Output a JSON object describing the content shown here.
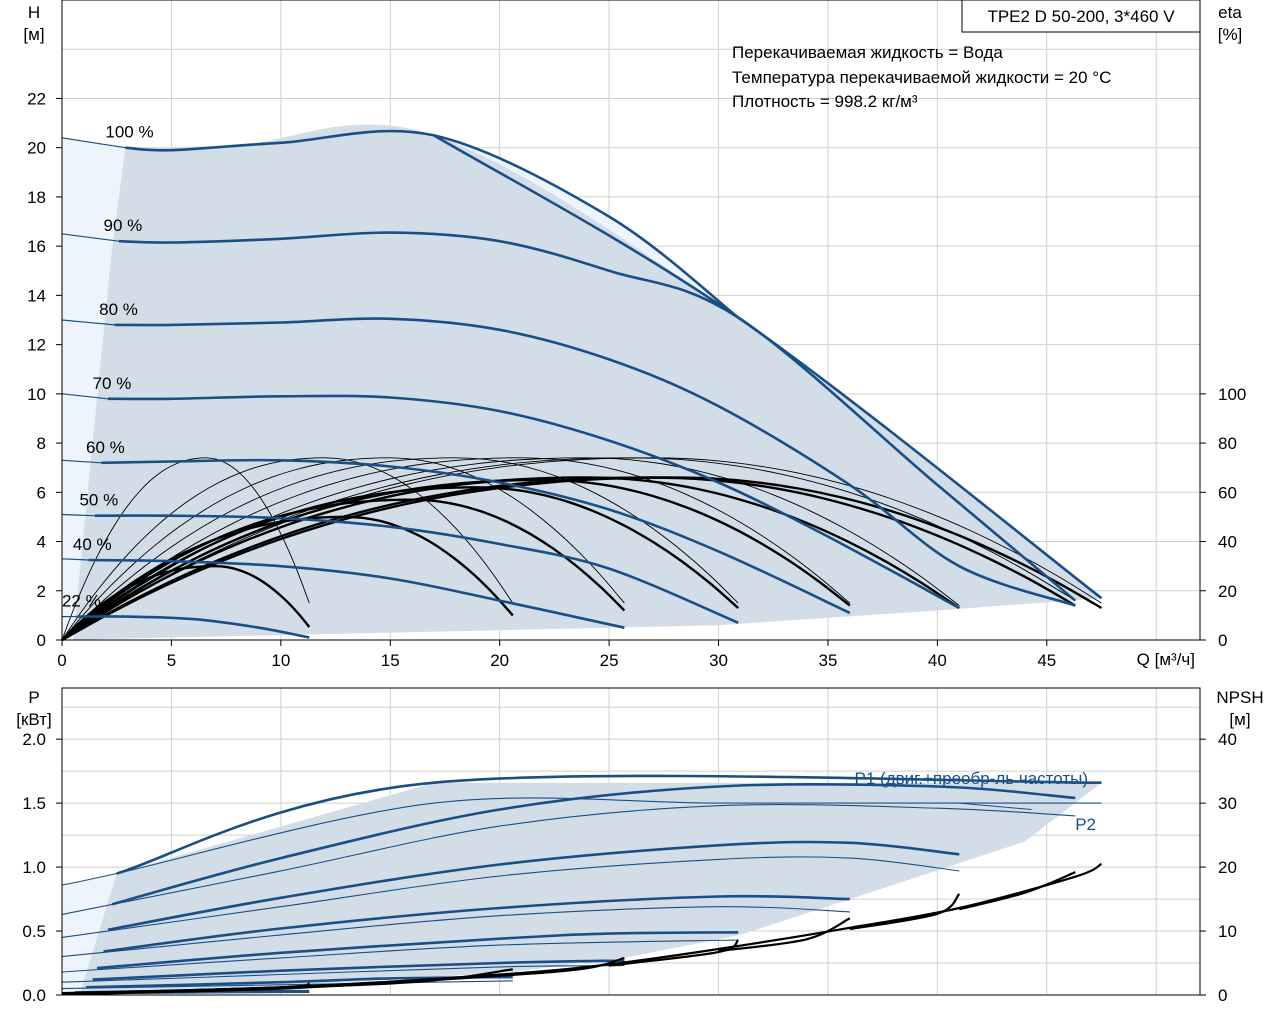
{
  "chart_data": [
    {
      "type": "line",
      "title": "TPE2 D 50-200, 3*460 V",
      "annotations": [
        "Перекачиваемая жидкость = Вода",
        "Температура перекачиваемой жидкости = 20 °C",
        "Плотность = 998.2 кг/м³"
      ],
      "xlabel": "Q [м³/ч]",
      "ylabel_left": [
        "H",
        "[м]"
      ],
      "ylabel_right": [
        "eta",
        "[%]"
      ],
      "xlim": [
        0,
        52
      ],
      "ylim_left": [
        0,
        26
      ],
      "ylim_right": [
        0,
        260
      ],
      "x_ticks": [
        0,
        5,
        10,
        15,
        20,
        25,
        30,
        35,
        40,
        45
      ],
      "y_left_ticks": [
        0,
        2,
        4,
        6,
        8,
        10,
        12,
        14,
        16,
        18,
        20,
        22
      ],
      "y_right_ticks": [
        0,
        20,
        40,
        60,
        80,
        100
      ],
      "grid": true,
      "envelope": {
        "top": [
          [
            2.9,
            20
          ],
          [
            8,
            20.1
          ],
          [
            17,
            20.5
          ],
          [
            30.9,
            13.1
          ],
          [
            47.5,
            1.7
          ]
        ],
        "bottom": [
          [
            0,
            0
          ],
          [
            10,
            0.2
          ],
          [
            20,
            0.4
          ],
          [
            30,
            0.6
          ],
          [
            40,
            1.2
          ],
          [
            47.5,
            1.7
          ]
        ]
      },
      "series": [
        {
          "name": "100 %",
          "points": [
            [
              0,
              20.4
            ],
            [
              2.9,
              20
            ],
            [
              5,
              19.9
            ],
            [
              10,
              20.2
            ],
            [
              17,
              20.5
            ],
            [
              25,
              17.2
            ],
            [
              30.9,
              13.1
            ]
          ]
        },
        {
          "name": "90 %",
          "points": [
            [
              0,
              16.5
            ],
            [
              2.6,
              16.2
            ],
            [
              5,
              16.15
            ],
            [
              10,
              16.3
            ],
            [
              15,
              16.55
            ],
            [
              20,
              16.2
            ],
            [
              25,
              15
            ],
            [
              30.9,
              13.1
            ],
            [
              40,
              6.3
            ],
            [
              46.3,
              1.6
            ]
          ]
        },
        {
          "name": "80 %",
          "points": [
            [
              0,
              13
            ],
            [
              2.4,
              12.8
            ],
            [
              5,
              12.8
            ],
            [
              10,
              12.9
            ],
            [
              15,
              13.05
            ],
            [
              20,
              12.6
            ],
            [
              25,
              11.4
            ],
            [
              30,
              9.5
            ],
            [
              36,
              6.3
            ],
            [
              41,
              3
            ],
            [
              46.3,
              1.4
            ]
          ]
        },
        {
          "name": "70 %",
          "points": [
            [
              0,
              10
            ],
            [
              2.1,
              9.8
            ],
            [
              5,
              9.8
            ],
            [
              10,
              9.9
            ],
            [
              15,
              9.85
            ],
            [
              20,
              9.3
            ],
            [
              25,
              8.1
            ],
            [
              30,
              6.4
            ],
            [
              35,
              4.2
            ],
            [
              41,
              1.3
            ]
          ]
        },
        {
          "name": "60 %",
          "points": [
            [
              0,
              7.3
            ],
            [
              1.8,
              7.2
            ],
            [
              5,
              7.25
            ],
            [
              10,
              7.3
            ],
            [
              15,
              7.05
            ],
            [
              20,
              6.4
            ],
            [
              25,
              5.3
            ],
            [
              30,
              3.6
            ],
            [
              36,
              1.1
            ]
          ]
        },
        {
          "name": "50 %",
          "points": [
            [
              0,
              5.1
            ],
            [
              1.5,
              5.05
            ],
            [
              5,
              5.05
            ],
            [
              10,
              4.95
            ],
            [
              15,
              4.6
            ],
            [
              20,
              3.9
            ],
            [
              25,
              2.9
            ],
            [
              30.9,
              0.7
            ]
          ]
        },
        {
          "name": "40 %",
          "points": [
            [
              0,
              3.3
            ],
            [
              1.2,
              3.25
            ],
            [
              5,
              3.2
            ],
            [
              10,
              3.0
            ],
            [
              15,
              2.5
            ],
            [
              20,
              1.6
            ],
            [
              25.7,
              0.5
            ]
          ]
        },
        {
          "name": "22 %",
          "points": [
            [
              0,
              0.95
            ],
            [
              0.7,
              0.95
            ],
            [
              3,
              0.95
            ],
            [
              6,
              0.85
            ],
            [
              9,
              0.5
            ],
            [
              11.3,
              0.1
            ]
          ]
        }
      ],
      "eta_bold_curves": [
        {
          "xmax": 11.3,
          "peak_q": 7,
          "peak_eta": 30,
          "end_eta": 5.3
        },
        {
          "xmax": 20.6,
          "peak_q": 13,
          "peak_eta": 50,
          "end_eta": 10
        },
        {
          "xmax": 25.7,
          "peak_q": 16,
          "peak_eta": 57,
          "end_eta": 12
        },
        {
          "xmax": 30.9,
          "peak_q": 19,
          "peak_eta": 62,
          "end_eta": 13
        },
        {
          "xmax": 36,
          "peak_q": 22,
          "peak_eta": 65,
          "end_eta": 14
        },
        {
          "xmax": 41,
          "peak_q": 24,
          "peak_eta": 66,
          "end_eta": 13
        },
        {
          "xmax": 46.3,
          "peak_q": 27,
          "peak_eta": 66,
          "end_eta": 14
        },
        {
          "xmax": 47.5,
          "peak_q": 28,
          "peak_eta": 66,
          "end_eta": 13
        }
      ],
      "eta_thin_curves": [
        {
          "xmax": 11.3,
          "peak_q": 6.6,
          "peak_eta": 74,
          "end_eta": 15
        },
        {
          "xmax": 20.6,
          "peak_q": 12,
          "peak_eta": 74,
          "end_eta": 15
        },
        {
          "xmax": 25.7,
          "peak_q": 15,
          "peak_eta": 74,
          "end_eta": 15
        },
        {
          "xmax": 30.9,
          "peak_q": 18,
          "peak_eta": 74,
          "end_eta": 15
        },
        {
          "xmax": 36,
          "peak_q": 21,
          "peak_eta": 74,
          "end_eta": 15
        },
        {
          "xmax": 41,
          "peak_q": 24,
          "peak_eta": 74,
          "end_eta": 14
        },
        {
          "xmax": 46.3,
          "peak_q": 26,
          "peak_eta": 74,
          "end_eta": 16
        },
        {
          "xmax": 47.5,
          "peak_q": 27,
          "peak_eta": 74,
          "end_eta": 15
        }
      ]
    },
    {
      "type": "line",
      "xlabel": "",
      "ylabel_left": [
        "P",
        "[кВт]"
      ],
      "ylabel_right": [
        "NPSH",
        "[м]"
      ],
      "xlim": [
        0,
        52
      ],
      "ylim_left": [
        0,
        2.4
      ],
      "ylim_right": [
        0,
        48
      ],
      "y_left_ticks": [
        "0.0",
        "0.5",
        "1.0",
        "1.5",
        "2.0"
      ],
      "y_right_ticks": [
        0,
        10,
        20,
        30,
        40
      ],
      "grid": true,
      "legend": [
        {
          "label": "P1 (двиг.+преобр-ль частоты)"
        },
        {
          "label": "P2"
        }
      ],
      "envelope": {
        "top": [
          [
            2.5,
            0.95
          ],
          [
            17,
            1.66
          ],
          [
            47.5,
            1.66
          ]
        ],
        "right": [
          [
            47.5,
            1.66
          ],
          [
            44,
            1.2
          ],
          [
            36,
            0.75
          ],
          [
            31,
            0.47
          ],
          [
            26,
            0.3
          ],
          [
            20.6,
            0.18
          ],
          [
            11.3,
            0.08
          ]
        ],
        "bottom": [
          [
            0,
            0
          ],
          [
            11.3,
            0.08
          ]
        ]
      },
      "p1_curves": [
        {
          "pts": [
            [
              2.5,
              0.95
            ],
            [
              17,
              1.66
            ],
            [
              47.5,
              1.66
            ]
          ]
        },
        {
          "pts": [
            [
              2.3,
              0.71
            ],
            [
              10,
              1.07
            ],
            [
              20,
              1.45
            ],
            [
              30,
              1.63
            ],
            [
              40,
              1.63
            ],
            [
              46.3,
              1.54
            ]
          ]
        },
        {
          "pts": [
            [
              2.1,
              0.51
            ],
            [
              10,
              0.76
            ],
            [
              20,
              1.02
            ],
            [
              30,
              1.17
            ],
            [
              36,
              1.19
            ],
            [
              41,
              1.1
            ]
          ]
        },
        {
          "pts": [
            [
              1.9,
              0.34
            ],
            [
              10,
              0.52
            ],
            [
              20,
              0.68
            ],
            [
              30,
              0.77
            ],
            [
              36,
              0.75
            ]
          ]
        },
        {
          "pts": [
            [
              1.6,
              0.21
            ],
            [
              10,
              0.33
            ],
            [
              20,
              0.44
            ],
            [
              25,
              0.48
            ],
            [
              30.9,
              0.49
            ]
          ]
        },
        {
          "pts": [
            [
              1.4,
              0.12
            ],
            [
              10,
              0.19
            ],
            [
              20,
              0.25
            ],
            [
              25.7,
              0.27
            ]
          ]
        },
        {
          "pts": [
            [
              1.1,
              0.06
            ],
            [
              10,
              0.1
            ],
            [
              15,
              0.13
            ],
            [
              20.6,
              0.14
            ]
          ]
        },
        {
          "pts": [
            [
              0.6,
              0.02
            ],
            [
              5,
              0.03
            ],
            [
              11.3,
              0.03
            ]
          ]
        }
      ],
      "p2_curves": [
        {
          "pts": [
            [
              0,
              0.86
            ],
            [
              2.5,
              0.95
            ],
            [
              17,
              1.5
            ],
            [
              30,
              1.5
            ],
            [
              41,
              1.5
            ],
            [
              47.5,
              1.5
            ]
          ]
        },
        {
          "pts": [
            [
              0,
              0.63
            ],
            [
              10,
              0.97
            ],
            [
              20,
              1.32
            ],
            [
              30,
              1.48
            ],
            [
              40,
              1.46
            ],
            [
              46.3,
              1.4
            ]
          ]
        },
        {
          "pts": [
            [
              0,
              0.45
            ],
            [
              10,
              0.69
            ],
            [
              20,
              0.93
            ],
            [
              30,
              1.06
            ],
            [
              36,
              1.07
            ],
            [
              41,
              0.97
            ]
          ]
        },
        {
          "pts": [
            [
              0,
              0.3
            ],
            [
              10,
              0.47
            ],
            [
              20,
              0.62
            ],
            [
              30,
              0.69
            ],
            [
              36,
              0.65
            ]
          ]
        },
        {
          "pts": [
            [
              0,
              0.18
            ],
            [
              10,
              0.29
            ],
            [
              20,
              0.39
            ],
            [
              30.9,
              0.43
            ]
          ]
        },
        {
          "pts": [
            [
              0,
              0.1
            ],
            [
              10,
              0.16
            ],
            [
              20,
              0.22
            ],
            [
              25.7,
              0.23
            ]
          ]
        },
        {
          "pts": [
            [
              0,
              0.05
            ],
            [
              10,
              0.08
            ],
            [
              20.6,
              0.11
            ]
          ]
        },
        {
          "pts": [
            [
              0,
              0.01
            ],
            [
              11.3,
              0.02
            ]
          ]
        }
      ],
      "npsh_curves": [
        {
          "pts": [
            [
              0,
              0.3
            ],
            [
              10,
              1.2
            ],
            [
              20,
              3.2
            ],
            [
              25,
              4.8
            ],
            [
              30,
              7.2
            ],
            [
              36,
              10.5
            ],
            [
              41,
              13.6
            ],
            [
              46.3,
              18.5
            ],
            [
              47.5,
              20.5
            ]
          ]
        },
        {
          "pts": [
            [
              0,
              0.1
            ],
            [
              10,
              1.0
            ],
            [
              20,
              3.0
            ],
            [
              24,
              4.2
            ],
            [
              25.7,
              5.8
            ]
          ]
        },
        {
          "pts": [
            [
              0,
              0.2
            ],
            [
              15,
              1.8
            ],
            [
              20.6,
              4.0
            ]
          ]
        },
        {
          "pts": [
            [
              0,
              0.1
            ],
            [
              10,
              1.2
            ],
            [
              11.3,
              1.8
            ]
          ]
        },
        {
          "pts": [
            [
              25,
              4.6
            ],
            [
              30,
              6.7
            ],
            [
              30.9,
              8.6
            ]
          ]
        },
        {
          "pts": [
            [
              30,
              6.9
            ],
            [
              34,
              8.7
            ],
            [
              36,
              12.0
            ]
          ]
        },
        {
          "pts": [
            [
              36,
              10.3
            ],
            [
              40,
              12.7
            ],
            [
              41,
              15.8
            ]
          ]
        },
        {
          "pts": [
            [
              41,
              13.4
            ],
            [
              44,
              16.0
            ],
            [
              46.3,
              19.2
            ]
          ]
        }
      ]
    }
  ]
}
